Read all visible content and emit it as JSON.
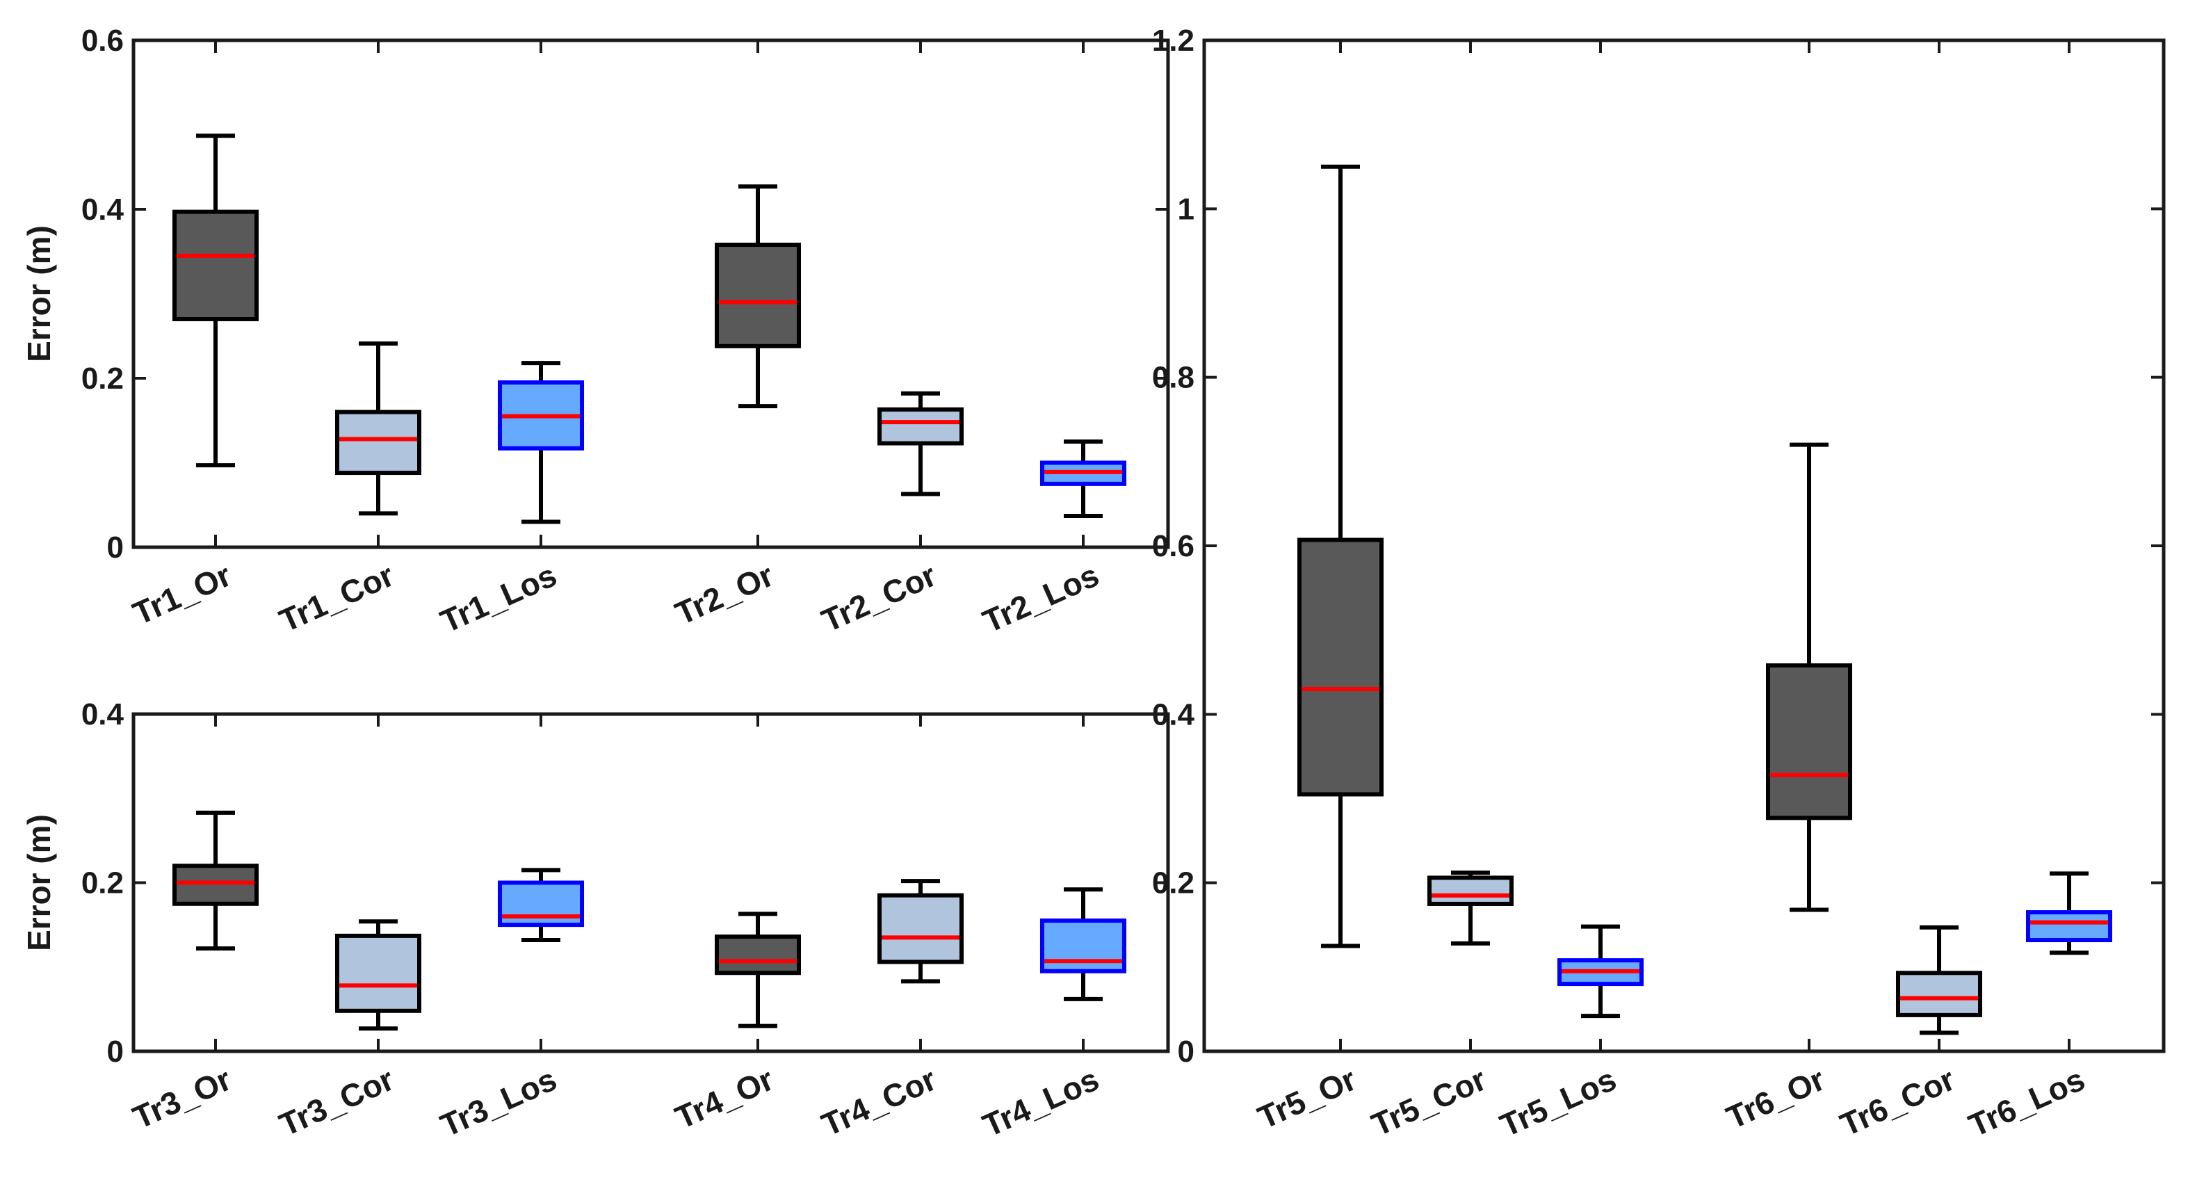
{
  "colors": {
    "or_fill": "#595959",
    "cor_fill": "#b0c4de",
    "los_fill": "#66aaff",
    "los_edge": "#0000ff",
    "edge": "#000000",
    "median": "#ff0000"
  },
  "chart_data": [
    {
      "type": "boxplot",
      "id": "top-left",
      "title": "",
      "xlabel": "",
      "ylabel": "Error (m)",
      "ylim": [
        0,
        0.6
      ],
      "yticks": [
        "0",
        "0.2",
        "0.4",
        "0.6"
      ],
      "ytick_values": [
        0,
        0.2,
        0.4,
        0.6
      ],
      "categories": [
        "Tr1_Or",
        "Tr1_Cor",
        "Tr1_Los",
        "Tr2_Or",
        "Tr2_Cor",
        "Tr2_Los"
      ],
      "boxes": [
        {
          "label": "Tr1_Or",
          "style": "or",
          "min": 0.097,
          "q1": 0.27,
          "median": 0.345,
          "q3": 0.397,
          "max": 0.487
        },
        {
          "label": "Tr1_Cor",
          "style": "cor",
          "min": 0.04,
          "q1": 0.088,
          "median": 0.128,
          "q3": 0.16,
          "max": 0.241
        },
        {
          "label": "Tr1_Los",
          "style": "los",
          "min": 0.03,
          "q1": 0.117,
          "median": 0.155,
          "q3": 0.195,
          "max": 0.218
        },
        {
          "label": "Tr2_Or",
          "style": "or",
          "min": 0.167,
          "q1": 0.238,
          "median": 0.29,
          "q3": 0.358,
          "max": 0.427
        },
        {
          "label": "Tr2_Cor",
          "style": "cor",
          "min": 0.063,
          "q1": 0.123,
          "median": 0.148,
          "q3": 0.163,
          "max": 0.182
        },
        {
          "label": "Tr2_Los",
          "style": "los",
          "min": 0.037,
          "q1": 0.075,
          "median": 0.089,
          "q3": 0.1,
          "max": 0.125
        }
      ]
    },
    {
      "type": "boxplot",
      "id": "bottom-left",
      "title": "",
      "xlabel": "",
      "ylabel": "Error (m)",
      "ylim": [
        0,
        0.4
      ],
      "yticks": [
        "0",
        "0.2",
        "0.4"
      ],
      "ytick_values": [
        0,
        0.2,
        0.4
      ],
      "categories": [
        "Tr3_Or",
        "Tr3_Cor",
        "Tr3_Los",
        "Tr4_Or",
        "Tr4_Cor",
        "Tr4_Los"
      ],
      "boxes": [
        {
          "label": "Tr3_Or",
          "style": "or",
          "min": 0.122,
          "q1": 0.175,
          "median": 0.2,
          "q3": 0.22,
          "max": 0.283
        },
        {
          "label": "Tr3_Cor",
          "style": "cor",
          "min": 0.027,
          "q1": 0.048,
          "median": 0.078,
          "q3": 0.137,
          "max": 0.154
        },
        {
          "label": "Tr3_Los",
          "style": "los",
          "min": 0.132,
          "q1": 0.15,
          "median": 0.16,
          "q3": 0.2,
          "max": 0.215
        },
        {
          "label": "Tr4_Or",
          "style": "or",
          "min": 0.03,
          "q1": 0.093,
          "median": 0.107,
          "q3": 0.136,
          "max": 0.163
        },
        {
          "label": "Tr4_Cor",
          "style": "cor",
          "min": 0.083,
          "q1": 0.106,
          "median": 0.135,
          "q3": 0.185,
          "max": 0.202
        },
        {
          "label": "Tr4_Los",
          "style": "los",
          "min": 0.062,
          "q1": 0.095,
          "median": 0.107,
          "q3": 0.155,
          "max": 0.192
        }
      ]
    },
    {
      "type": "boxplot",
      "id": "right",
      "title": "",
      "xlabel": "",
      "ylabel": "",
      "ylim": [
        0,
        1.2
      ],
      "yticks": [
        "0",
        "0.2",
        "0.4",
        "0.6",
        "0.8",
        "1",
        "1.2"
      ],
      "ytick_values": [
        0,
        0.2,
        0.4,
        0.6,
        0.8,
        1.0,
        1.2
      ],
      "categories": [
        "Tr5_Or",
        "Tr5_Cor",
        "Tr5_Los",
        "Tr6_Or",
        "Tr6_Cor",
        "Tr6_Los"
      ],
      "boxes": [
        {
          "label": "Tr5_Or",
          "style": "or",
          "min": 0.125,
          "q1": 0.305,
          "median": 0.43,
          "q3": 0.607,
          "max": 1.05
        },
        {
          "label": "Tr5_Cor",
          "style": "cor",
          "min": 0.128,
          "q1": 0.175,
          "median": 0.185,
          "q3": 0.206,
          "max": 0.212
        },
        {
          "label": "Tr5_Los",
          "style": "los",
          "min": 0.042,
          "q1": 0.08,
          "median": 0.095,
          "q3": 0.108,
          "max": 0.148
        },
        {
          "label": "Tr6_Or",
          "style": "or",
          "min": 0.168,
          "q1": 0.277,
          "median": 0.328,
          "q3": 0.458,
          "max": 0.72
        },
        {
          "label": "Tr6_Cor",
          "style": "cor",
          "min": 0.022,
          "q1": 0.043,
          "median": 0.063,
          "q3": 0.093,
          "max": 0.147
        },
        {
          "label": "Tr6_Los",
          "style": "los",
          "min": 0.117,
          "q1": 0.132,
          "median": 0.153,
          "q3": 0.165,
          "max": 0.211
        }
      ]
    }
  ]
}
